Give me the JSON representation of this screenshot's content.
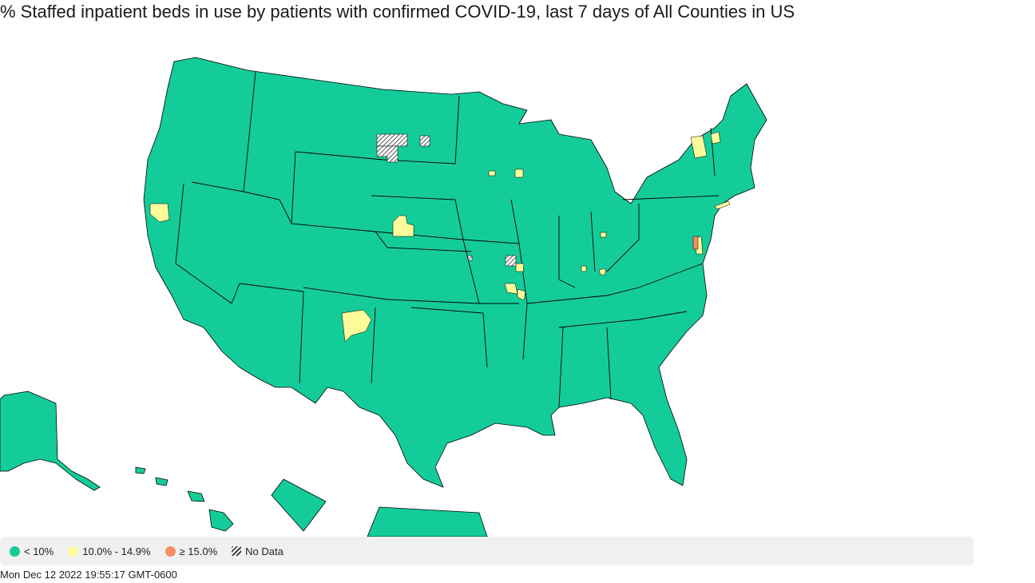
{
  "title": "% Staffed inpatient beds in use by patients with confirmed COVID-19, last 7 days of All Counties in US",
  "legend": {
    "items": [
      {
        "label": "< 10%",
        "color": "#0fcf9c"
      },
      {
        "label": "10.0% - 14.9%",
        "color": "#fffe9e"
      },
      {
        "label": "≥ 15.0%",
        "color": "#fa8b66"
      },
      {
        "label": "No Data",
        "color": "hatch"
      }
    ]
  },
  "timestamp": "Mon Dec 12 2022 19:55:17 GMT-0600",
  "colors": {
    "low": "#14cc99",
    "mid": "#fdfb9a",
    "high": "#f98c63",
    "border": "#000000"
  }
}
